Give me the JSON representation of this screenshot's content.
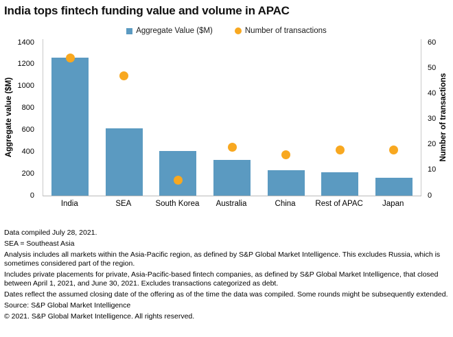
{
  "title": "India tops fintech funding value and volume in APAC",
  "legend": [
    {
      "label": "Aggregate Value ($M)",
      "shape": "square",
      "color": "#5b9ac1"
    },
    {
      "label": "Number of transactions",
      "shape": "circle",
      "color": "#f8a820"
    }
  ],
  "chart_data": {
    "type": "bar+scatter",
    "categories": [
      "India",
      "SEA",
      "South Korea",
      "Australia",
      "China",
      "Rest of APAC",
      "Japan"
    ],
    "series": [
      {
        "name": "Aggregate Value ($M)",
        "type": "bar",
        "axis": "left",
        "color": "#5b9ac1",
        "values": [
          1260,
          615,
          410,
          325,
          235,
          215,
          165
        ]
      },
      {
        "name": "Number of transactions",
        "type": "scatter",
        "axis": "right",
        "color": "#f8a820",
        "values": [
          54,
          47,
          6,
          19,
          16,
          18,
          18
        ]
      }
    ],
    "left_axis": {
      "label": "Aggregate value ($M)",
      "min": 0,
      "max": 1400,
      "step": 200
    },
    "right_axis": {
      "label": "Number of transactions",
      "min": 0,
      "max": 60,
      "step": 10
    },
    "grid": false,
    "legend_position": "top"
  },
  "footnotes": [
    "Data compiled July 28, 2021.",
    "SEA = Southeast Asia",
    "Analysis includes all markets within the Asia-Pacific region, as defined by S&P Global Market Intelligence. This excludes Russia, which is sometimes considered part of the region.",
    "Includes private placements for private, Asia-Pacific-based fintech companies, as defined by S&P Global Market Intelligence, that closed between April 1, 2021, and June 30, 2021. Excludes transactions categorized as debt.",
    "Dates reflect the assumed closing date of the offering as of the time the data was compiled. Some rounds might be subsequently extended.",
    "Source: S&P Global Market Intelligence",
    "© 2021. S&P Global Market Intelligence. All rights reserved."
  ],
  "colors": {
    "bar": "#5b9ac1",
    "dot": "#f8a820",
    "axis_line": "#c9c9c9",
    "text": "#000000",
    "background": "#ffffff"
  }
}
